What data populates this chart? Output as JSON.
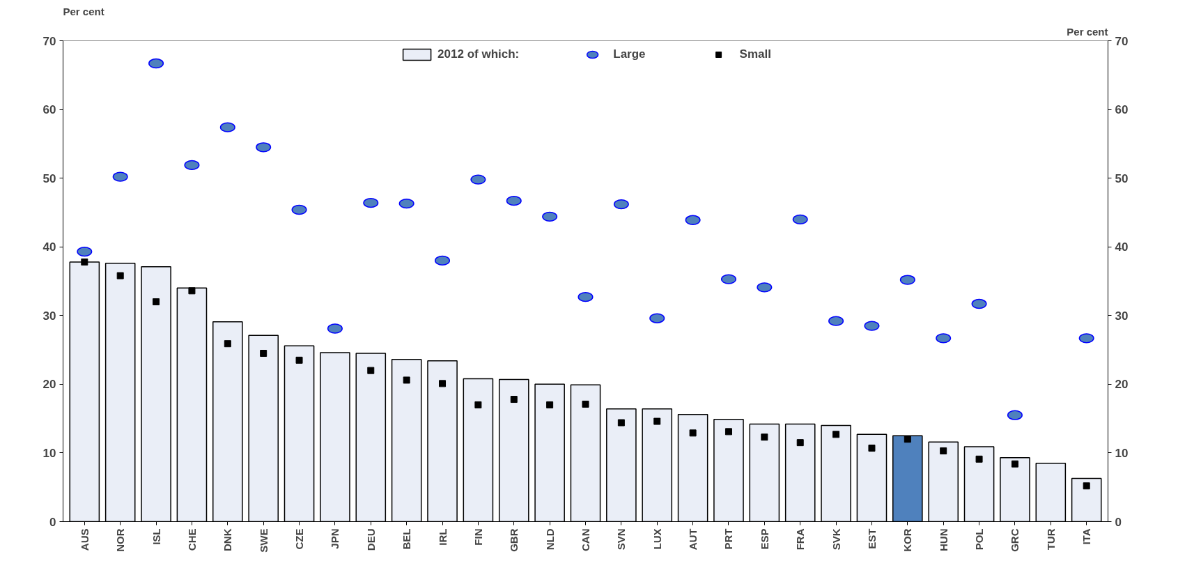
{
  "chart_data": {
    "type": "bar",
    "ylabel": "Per cent",
    "y2label": "Per cent",
    "categories": [
      "AUS",
      "NOR",
      "ISL",
      "CHE",
      "DNK",
      "SWE",
      "CZE",
      "JPN",
      "DEU",
      "BEL",
      "IRL",
      "FIN",
      "GBR",
      "NLD",
      "CAN",
      "SVN",
      "LUX",
      "AUT",
      "PRT",
      "ESP",
      "FRA",
      "SVK",
      "EST",
      "KOR",
      "HUN",
      "POL",
      "GRC",
      "TUR",
      "ITA"
    ],
    "series": [
      {
        "name": "2012 of which:",
        "color": "#eaeef7",
        "colors": [
          null,
          null,
          null,
          null,
          null,
          null,
          null,
          null,
          null,
          null,
          null,
          null,
          null,
          null,
          null,
          null,
          null,
          null,
          null,
          null,
          null,
          null,
          null,
          "#4f81bd",
          null,
          null,
          null,
          null,
          null
        ],
        "values": [
          37.8,
          37.6,
          37.1,
          34.0,
          29.1,
          27.1,
          25.6,
          24.6,
          24.5,
          23.6,
          23.4,
          20.8,
          20.7,
          20.0,
          19.9,
          16.4,
          16.4,
          15.6,
          14.9,
          14.2,
          14.2,
          14.0,
          12.7,
          12.5,
          11.6,
          10.9,
          9.3,
          8.5,
          6.3
        ]
      },
      {
        "name": "Large",
        "type": "scatter",
        "marker": "circle",
        "color": "#4f81bd",
        "values": [
          39.3,
          50.2,
          66.7,
          51.9,
          57.4,
          54.5,
          45.4,
          28.1,
          46.4,
          46.3,
          38.0,
          49.8,
          46.7,
          44.4,
          32.7,
          46.2,
          29.6,
          43.9,
          35.3,
          34.1,
          44.0,
          29.2,
          28.5,
          35.2,
          26.7,
          31.7,
          15.5,
          null,
          26.7
        ]
      },
      {
        "name": "Small",
        "type": "scatter",
        "marker": "square",
        "color": "#000000",
        "values": [
          37.8,
          35.8,
          32.0,
          33.6,
          25.9,
          24.5,
          23.5,
          null,
          22.0,
          20.6,
          20.1,
          17.0,
          17.8,
          17.0,
          17.1,
          14.4,
          14.6,
          12.9,
          13.1,
          12.3,
          11.5,
          12.7,
          10.7,
          12.0,
          10.3,
          9.1,
          8.4,
          null,
          5.2
        ]
      }
    ],
    "ylim": [
      0,
      70
    ],
    "yticks": [
      0,
      10,
      20,
      30,
      40,
      50,
      60,
      70
    ],
    "y2lim": [
      0,
      70
    ],
    "y2ticks": [
      0,
      10,
      20,
      30,
      40,
      50,
      60,
      70
    ],
    "grid": false,
    "legend": "top"
  }
}
